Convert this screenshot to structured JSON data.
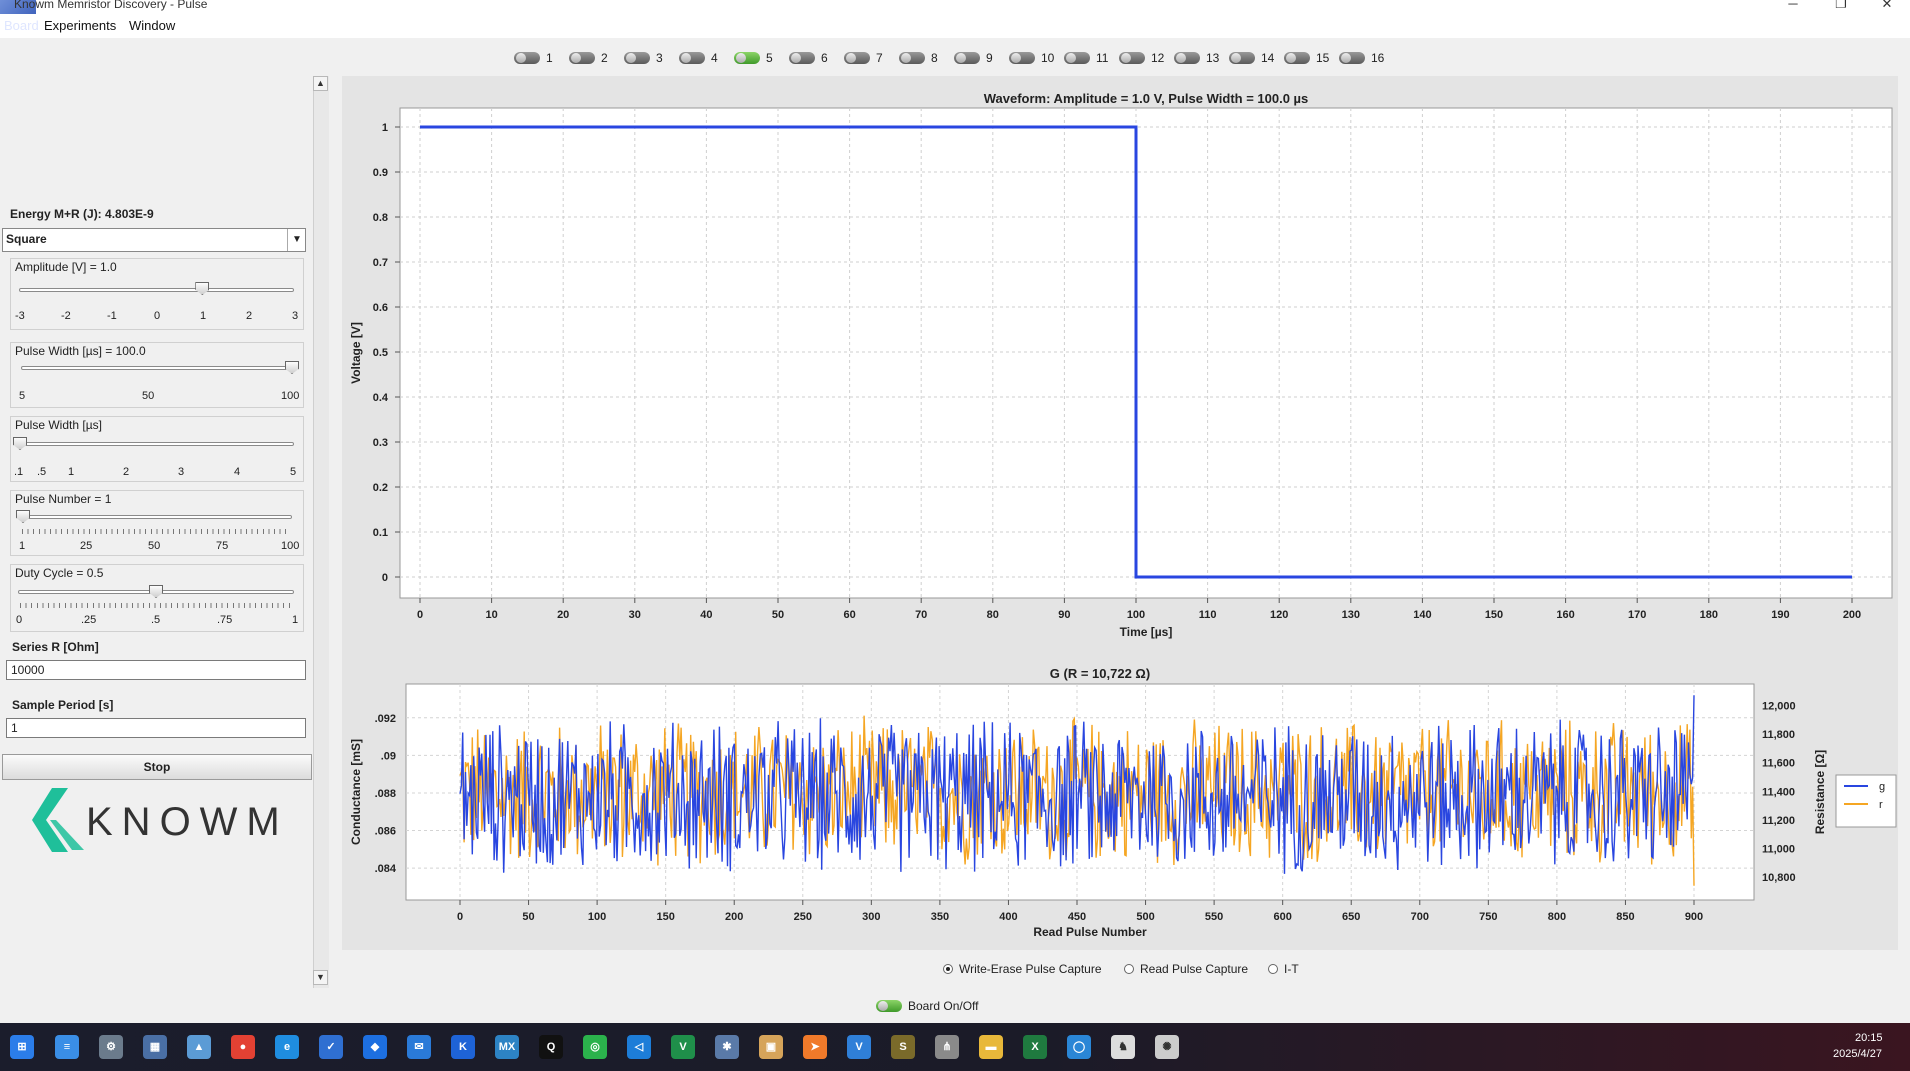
{
  "app": {
    "title": "Knowm Memristor Discovery - Pulse"
  },
  "menu": {
    "board": "Board",
    "experiments": "Experiments",
    "window": "Window"
  },
  "window_controls": {
    "minimize": "─",
    "maximize": "❐",
    "close": "✕"
  },
  "channels": [
    {
      "label": "1",
      "on": false
    },
    {
      "label": "2",
      "on": false
    },
    {
      "label": "3",
      "on": false
    },
    {
      "label": "4",
      "on": false
    },
    {
      "label": "5",
      "on": true
    },
    {
      "label": "6",
      "on": false
    },
    {
      "label": "7",
      "on": false
    },
    {
      "label": "8",
      "on": false
    },
    {
      "label": "9",
      "on": false
    },
    {
      "label": "10",
      "on": false
    },
    {
      "label": "11",
      "on": false
    },
    {
      "label": "12",
      "on": false
    },
    {
      "label": "13",
      "on": false
    },
    {
      "label": "14",
      "on": false
    },
    {
      "label": "15",
      "on": false
    },
    {
      "label": "16",
      "on": false
    }
  ],
  "left_panel": {
    "energy": "Energy M+R (J): 4.803E-9",
    "waveform_select": "Square",
    "amplitude": {
      "label": "Amplitude [V] = 1.0",
      "ticks": [
        "-3",
        "-2",
        "-1",
        "0",
        "1",
        "2",
        "3"
      ],
      "value": 1.0,
      "min": -3,
      "max": 3
    },
    "pulse_width_coarse": {
      "label": "Pulse Width [µs] = 100.0",
      "ticks": [
        "5",
        "50",
        "100"
      ],
      "value": 100,
      "min": 5,
      "max": 100
    },
    "pulse_width_fine": {
      "label": "Pulse Width [µs]",
      "ticks": [
        ".1",
        ".5",
        "1",
        "2",
        "3",
        "4",
        "5"
      ],
      "value": 0.1,
      "min": 0.1,
      "max": 5
    },
    "pulse_number": {
      "label": "Pulse Number = 1",
      "ticks": [
        "1",
        "25",
        "50",
        "75",
        "100"
      ],
      "value": 1,
      "min": 1,
      "max": 100
    },
    "duty_cycle": {
      "label": "Duty Cycle = 0.5",
      "ticks": [
        "0",
        ".25",
        ".5",
        ".75",
        "1"
      ],
      "value": 0.5,
      "min": 0,
      "max": 1
    },
    "series_r": {
      "label": "Series R [Ohm]",
      "value": "10000"
    },
    "sample_period": {
      "label": "Sample Period [s]",
      "value": "1"
    },
    "stop_button": "Stop",
    "logo_text": "KNOWM"
  },
  "chart_data": [
    {
      "type": "line",
      "title": "Waveform: Amplitude = 1.0 V, Pulse Width = 100.0 µs",
      "xlabel": "Time [µs]",
      "ylabel": "Voltage [V]",
      "xlim": [
        0,
        200
      ],
      "ylim": [
        0,
        1
      ],
      "x_ticks": [
        0,
        10,
        20,
        30,
        40,
        50,
        60,
        70,
        80,
        90,
        100,
        110,
        120,
        130,
        140,
        150,
        160,
        170,
        180,
        190,
        200
      ],
      "y_ticks": [
        0,
        0.1,
        0.2,
        0.3,
        0.4,
        0.5,
        0.6,
        0.7,
        0.8,
        0.9,
        1
      ],
      "grid": true,
      "series": [
        {
          "color": "#2946e0",
          "x": [
            0,
            100,
            100,
            200
          ],
          "y": [
            1,
            1,
            0,
            0
          ]
        }
      ]
    },
    {
      "type": "line",
      "title": "G (R = 10,722 Ω)",
      "xlabel": "Read Pulse Number",
      "ylabel": "Conductance [mS]",
      "y2label": "Resistance [Ω]",
      "xlim": [
        0,
        900
      ],
      "ylim": [
        0.0823,
        0.0938
      ],
      "y_ticks": [
        ".084",
        ".086",
        ".088",
        ".09",
        ".092"
      ],
      "y_tick_values": [
        0.084,
        0.086,
        0.088,
        0.09,
        0.092
      ],
      "y2_ticks": [
        "10,800",
        "11,000",
        "11,200",
        "11,400",
        "11,600",
        "11,800",
        "12,000"
      ],
      "y2_tick_values": [
        10800,
        11000,
        11200,
        11400,
        11600,
        11800,
        12000
      ],
      "y2lim": [
        10640,
        12150
      ],
      "x_ticks": [
        0,
        50,
        100,
        150,
        200,
        250,
        300,
        350,
        400,
        450,
        500,
        550,
        600,
        650,
        700,
        750,
        800,
        850,
        900
      ],
      "grid": true,
      "legend_position": "right",
      "series": [
        {
          "name": "g",
          "color": "#2946e0",
          "axis": "left",
          "count": 905,
          "mean": 0.0878,
          "spread": 0.0045,
          "last": 0.0932
        },
        {
          "name": "r",
          "color": "#f5a623",
          "axis": "right",
          "count": 905,
          "mean": 11390,
          "spread": 560,
          "last": 10740
        }
      ]
    }
  ],
  "capture_modes": [
    {
      "label": "Write-Erase Pulse Capture",
      "selected": true
    },
    {
      "label": "Read Pulse Capture",
      "selected": false
    },
    {
      "label": "I-T",
      "selected": false
    }
  ],
  "board_toggle": {
    "label": "Board On/Off",
    "on": true
  },
  "taskbar": {
    "icons": [
      "windows-start-icon",
      "notepad-icon",
      "settings-icon",
      "calculator-icon",
      "photos-icon",
      "chrome-icon",
      "edge-icon",
      "vscode-like-icon",
      "feishu-icon",
      "outlook-icon",
      "knowm-k-icon",
      "mx-icon",
      "qq-icon",
      "wechat-icon",
      "vscode-icon",
      "excel-vs-icon",
      "tools-icon",
      "notes-icon",
      "paper-plane-icon",
      "v-icon",
      "spy-icon",
      "network-icon",
      "folder-icon",
      "excel-icon",
      "globe-icon",
      "chess-icon",
      "openai-icon"
    ],
    "time": "20:15",
    "date": "2025/4/27"
  }
}
